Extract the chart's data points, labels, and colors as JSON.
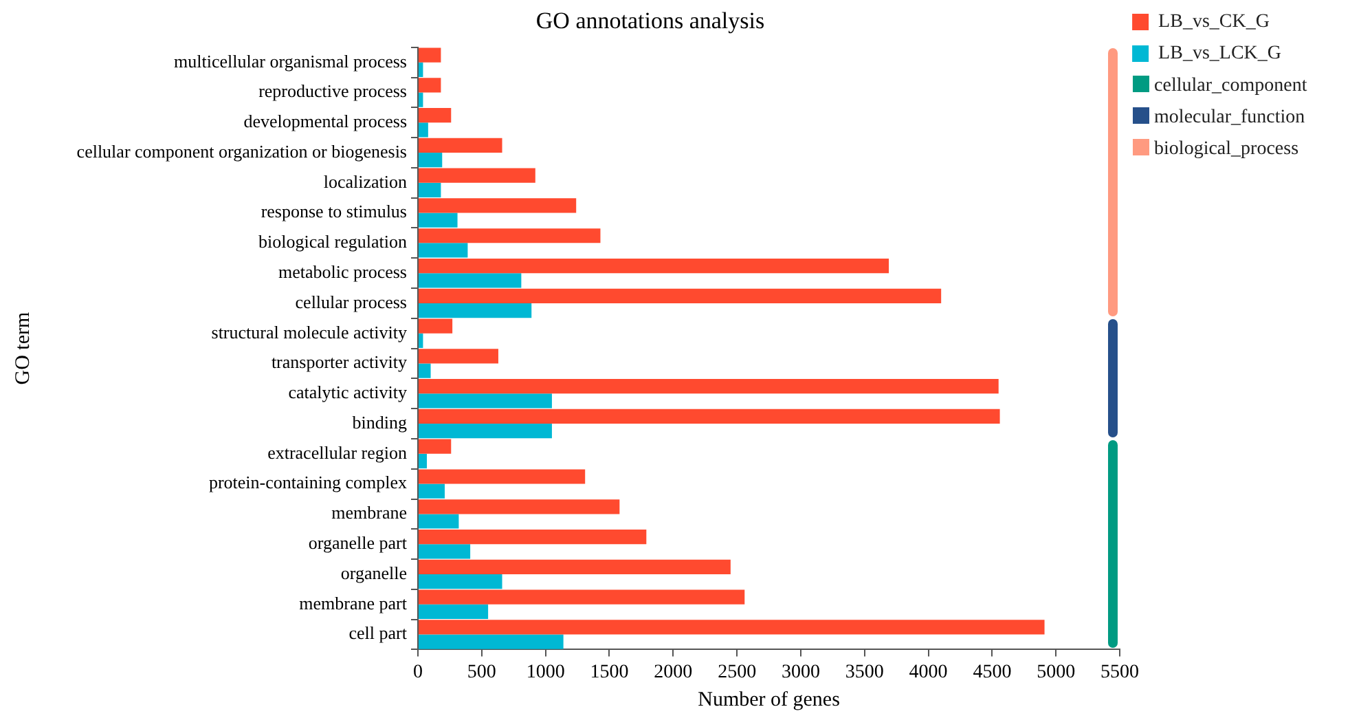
{
  "chart_data": {
    "type": "bar",
    "orientation": "horizontal",
    "title": "GO annotations analysis",
    "xlabel": "Number of genes",
    "ylabel": "GO term",
    "categories": [
      "multicellular organismal process",
      "reproductive process",
      "developmental process",
      "cellular component organization or biogenesis",
      "localization",
      "response to stimulus",
      "biological regulation",
      "metabolic process",
      "cellular process",
      "structural molecule activity",
      "transporter activity",
      "catalytic activity",
      "binding",
      "extracellular region",
      "protein-containing complex",
      "membrane",
      "organelle part",
      "organelle",
      "membrane part",
      "cell part"
    ],
    "series": [
      {
        "name": "LB_vs_CK_G",
        "color": "#ff4a2f",
        "values": [
          180,
          180,
          260,
          660,
          920,
          1240,
          1430,
          3690,
          4100,
          270,
          630,
          4550,
          4560,
          260,
          1310,
          1580,
          1790,
          2450,
          2560,
          4910
        ]
      },
      {
        "name": "LB_vs_LCK_G",
        "color": "#00b8d4",
        "values": [
          40,
          40,
          80,
          190,
          180,
          310,
          390,
          810,
          890,
          40,
          100,
          1050,
          1050,
          70,
          210,
          320,
          410,
          660,
          550,
          1140
        ]
      }
    ],
    "annotations": [
      "cellular_component",
      "molecular_function",
      "biological_process"
    ],
    "xlim": [
      0,
      5500
    ],
    "xticks": [
      0,
      500,
      1000,
      1500,
      2000,
      2500,
      3000,
      3500,
      4000,
      4500,
      5000,
      5500
    ],
    "grid": false,
    "legend": "top right"
  }
}
